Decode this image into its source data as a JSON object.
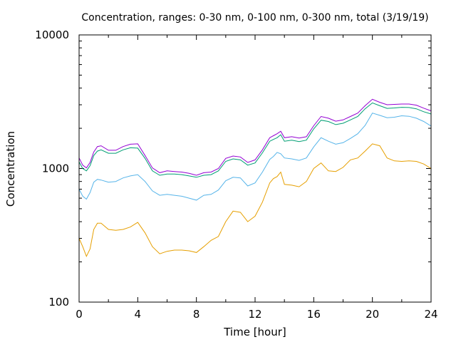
{
  "chart_data": {
    "type": "line",
    "title": "Concentration, ranges: 0-30 nm, 0-100 nm, 0-300 nm, total (3/19/19)",
    "xlabel": "Time [hour]",
    "ylabel": "Concentration",
    "xlim": [
      0,
      24
    ],
    "ylim": [
      100,
      10000
    ],
    "yscale": "log",
    "grid": false,
    "legend": "none",
    "x_ticks": [
      0,
      4,
      8,
      12,
      16,
      20,
      24
    ],
    "x_tick_labels": [
      "0",
      "4",
      "8",
      "12",
      "16",
      "20",
      "24"
    ],
    "y_ticks": [
      100,
      1000,
      10000
    ],
    "y_tick_labels": [
      "100",
      "1000",
      "10000"
    ],
    "x": [
      0,
      0.25,
      0.5,
      0.75,
      1,
      1.25,
      1.5,
      2,
      2.5,
      3,
      3.5,
      4,
      4.5,
      5,
      5.5,
      6,
      6.5,
      7,
      7.5,
      8,
      8.5,
      9,
      9.5,
      10,
      10.5,
      11,
      11.5,
      12,
      12.5,
      13,
      13.25,
      13.5,
      13.75,
      14,
      14.5,
      15,
      15.5,
      16,
      16.5,
      17,
      17.5,
      18,
      18.5,
      19,
      19.5,
      20,
      20.5,
      21,
      21.5,
      22,
      22.5,
      23,
      23.5,
      24
    ],
    "series": [
      {
        "color": "#e69f00",
        "values": [
          300,
          260,
          220,
          250,
          350,
          390,
          390,
          350,
          345,
          350,
          365,
          395,
          330,
          260,
          230,
          240,
          245,
          245,
          242,
          235,
          260,
          290,
          310,
          400,
          480,
          470,
          400,
          440,
          560,
          780,
          840,
          870,
          940,
          760,
          750,
          730,
          800,
          1000,
          1100,
          960,
          950,
          1020,
          1160,
          1200,
          1350,
          1530,
          1480,
          1200,
          1140,
          1130,
          1140,
          1130,
          1080,
          1000
        ]
      },
      {
        "color": "#56b4e9",
        "values": [
          700,
          620,
          590,
          660,
          790,
          830,
          820,
          790,
          800,
          850,
          880,
          900,
          800,
          680,
          630,
          640,
          630,
          620,
          600,
          580,
          630,
          640,
          690,
          810,
          860,
          850,
          740,
          780,
          940,
          1170,
          1230,
          1320,
          1290,
          1200,
          1180,
          1150,
          1200,
          1450,
          1700,
          1600,
          1520,
          1560,
          1680,
          1820,
          2100,
          2600,
          2500,
          2400,
          2420,
          2480,
          2460,
          2380,
          2250,
          2080
        ]
      },
      {
        "color": "#009e73",
        "values": [
          1120,
          1000,
          960,
          1050,
          1250,
          1350,
          1380,
          1300,
          1300,
          1380,
          1430,
          1420,
          1190,
          960,
          890,
          910,
          910,
          900,
          880,
          860,
          890,
          900,
          960,
          1130,
          1180,
          1160,
          1060,
          1100,
          1310,
          1600,
          1650,
          1700,
          1790,
          1600,
          1630,
          1590,
          1630,
          1980,
          2300,
          2250,
          2130,
          2180,
          2310,
          2450,
          2800,
          3100,
          2950,
          2820,
          2840,
          2870,
          2860,
          2800,
          2660,
          2560
        ]
      },
      {
        "color": "#9400d3",
        "values": [
          1200,
          1060,
          1010,
          1110,
          1330,
          1460,
          1480,
          1370,
          1370,
          1460,
          1520,
          1530,
          1250,
          1010,
          930,
          960,
          950,
          940,
          920,
          890,
          930,
          940,
          1000,
          1190,
          1240,
          1220,
          1110,
          1160,
          1380,
          1700,
          1760,
          1820,
          1900,
          1700,
          1730,
          1690,
          1730,
          2090,
          2450,
          2380,
          2260,
          2310,
          2450,
          2600,
          2950,
          3300,
          3130,
          3000,
          3020,
          3040,
          3040,
          2980,
          2830,
          2700
        ]
      }
    ]
  }
}
